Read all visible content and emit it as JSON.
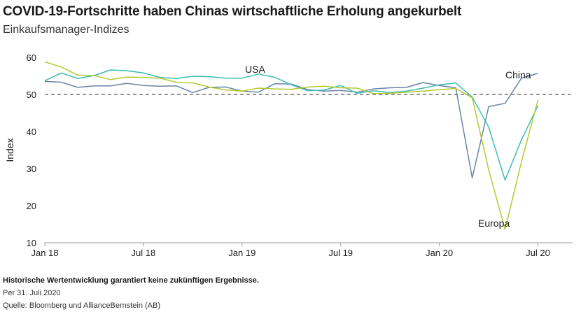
{
  "title": "COVID-19-Fortschritte haben Chinas wirtschaftliche Erholung angekurbelt",
  "subtitle": "Einkaufsmanager-Indizes",
  "footer": {
    "disclaimer": "Historische Wertentwicklung garantiert keine zukünftigen Ergebnisse.",
    "date": "Per 31. Juli 2020",
    "source": "Quelle: Bloomberg und AllianceBernstein (AB)"
  },
  "colors": {
    "china": "#6b83a6",
    "usa": "#3bbdb3",
    "europa": "#b5c930",
    "reference": "#555555"
  },
  "chart_data": {
    "type": "line",
    "ylabel": "Index",
    "xlabel": "",
    "ylim": [
      10,
      60
    ],
    "yticks": [
      10,
      20,
      30,
      40,
      50,
      60
    ],
    "xlim": [
      0,
      31
    ],
    "xticks": [
      {
        "pos": 0,
        "label": "Jan 18"
      },
      {
        "pos": 6,
        "label": "Jul 18"
      },
      {
        "pos": 12,
        "label": "Jan 19"
      },
      {
        "pos": 18,
        "label": "Jul 19"
      },
      {
        "pos": 24,
        "label": "Jan 20"
      },
      {
        "pos": 30,
        "label": "Jul 20"
      }
    ],
    "reference_line": 50,
    "series": [
      {
        "name": "China",
        "key": "china",
        "values": [
          53.5,
          53.3,
          51.9,
          52.3,
          52.3,
          53.0,
          52.4,
          52.2,
          52.3,
          50.5,
          51.9,
          52.0,
          50.9,
          50.6,
          52.9,
          52.8,
          51.3,
          50.9,
          51.1,
          50.6,
          51.5,
          51.8,
          51.9,
          53.2,
          52.4,
          51.8,
          27.5,
          46.7,
          47.6,
          54.4,
          55.7
        ]
      },
      {
        "name": "USA",
        "key": "usa",
        "values": [
          53.7,
          55.8,
          54.3,
          55.1,
          56.6,
          56.4,
          55.8,
          54.6,
          54.3,
          54.9,
          54.8,
          54.4,
          54.4,
          55.5,
          54.6,
          52.6,
          51.0,
          51.2,
          52.4,
          50.3,
          51.0,
          50.5,
          50.9,
          51.7,
          52.6,
          53.1,
          49.3,
          41.2,
          26.9,
          37.8,
          47.0
        ]
      },
      {
        "name": "Europa",
        "key": "europa",
        "values": [
          58.8,
          57.4,
          55.2,
          55.1,
          54.0,
          54.7,
          54.6,
          54.4,
          53.3,
          53.1,
          52.0,
          51.2,
          50.9,
          51.7,
          51.5,
          51.4,
          52.0,
          52.2,
          51.8,
          51.7,
          50.2,
          50.3,
          50.6,
          50.9,
          51.3,
          51.6,
          49.1,
          29.7,
          13.6,
          31.9,
          48.5
        ]
      }
    ],
    "annotations": [
      {
        "text": "USA",
        "series": "usa"
      },
      {
        "text": "China",
        "series": "china"
      },
      {
        "text": "Europa",
        "series": "europa"
      }
    ]
  }
}
